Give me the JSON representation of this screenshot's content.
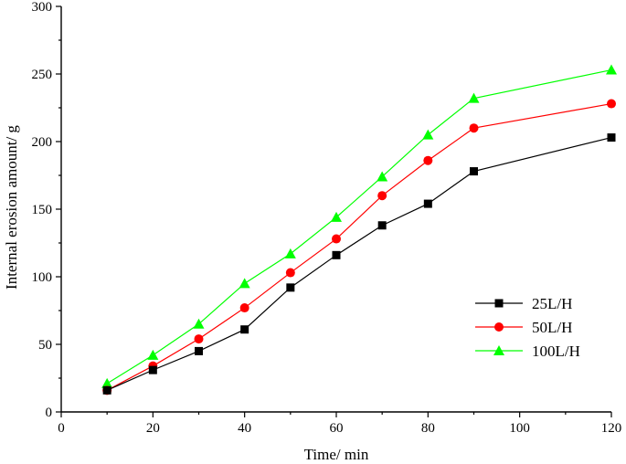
{
  "chart_data": {
    "type": "line",
    "title": "",
    "xlabel": "Time/ min",
    "ylabel": "Internal erosion amount/ g",
    "xlim": [
      0,
      120
    ],
    "ylim": [
      0,
      300
    ],
    "xticks": [
      0,
      20,
      40,
      60,
      80,
      100,
      120
    ],
    "yticks": [
      0,
      50,
      100,
      150,
      200,
      250,
      300
    ],
    "x": [
      10,
      20,
      30,
      40,
      50,
      60,
      70,
      80,
      90,
      120
    ],
    "legend_position": "right",
    "series": [
      {
        "name": "25L/H",
        "color": "#000000",
        "marker": "square",
        "values": [
          16,
          31,
          45,
          61,
          92,
          116,
          138,
          154,
          178,
          203
        ]
      },
      {
        "name": "50L/H",
        "color": "#ff0000",
        "marker": "circle",
        "values": [
          16,
          34,
          54,
          77,
          103,
          128,
          160,
          186,
          210,
          228
        ]
      },
      {
        "name": "100L/H",
        "color": "#00ff00",
        "marker": "triangle",
        "values": [
          21,
          42,
          65,
          95,
          117,
          144,
          174,
          205,
          232,
          253
        ]
      }
    ]
  }
}
